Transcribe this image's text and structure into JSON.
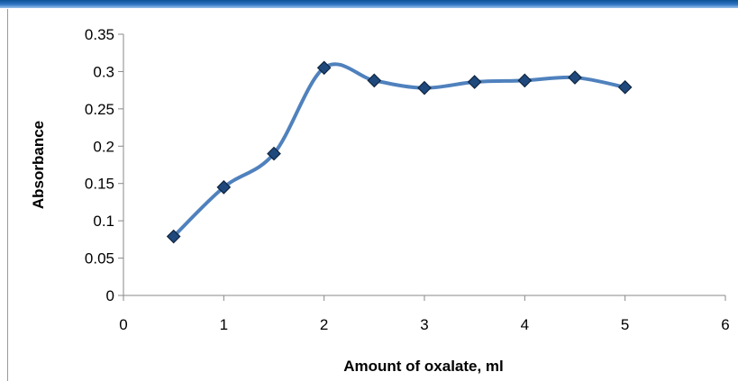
{
  "chart_data": {
    "type": "line",
    "title": "",
    "xlabel": "Amount of oxalate, ml",
    "ylabel": "Absorbance",
    "xlim": [
      0,
      6
    ],
    "ylim": [
      0,
      0.35
    ],
    "x_ticks": [
      "0",
      "1",
      "2",
      "3",
      "4",
      "5",
      "6"
    ],
    "y_ticks": [
      "0",
      "0.05",
      "0.1",
      "0.15",
      "0.2",
      "0.25",
      "0.3",
      "0.35"
    ],
    "x": [
      0.5,
      1.0,
      1.5,
      2.0,
      2.5,
      3.0,
      3.5,
      4.0,
      4.5,
      5.0
    ],
    "series": [
      {
        "values": [
          0.079,
          0.145,
          0.19,
          0.305,
          0.288,
          0.278,
          0.286,
          0.288,
          0.292,
          0.279
        ],
        "line_style": "smoothed",
        "marker": "diamond"
      }
    ],
    "grid": false,
    "legend": "none",
    "colors": {
      "line": "#4f81bd",
      "marker_fill": "#1f497d",
      "marker_edge": "#10253f",
      "axis": "#888888",
      "top_band": "#2f75c4"
    }
  }
}
